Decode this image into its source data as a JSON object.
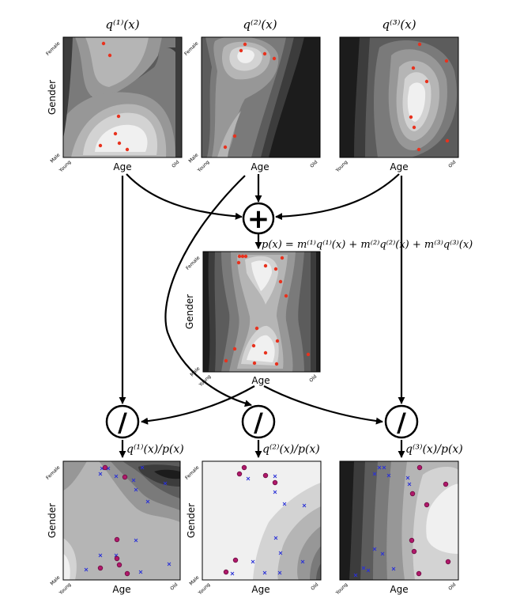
{
  "panels": {
    "q1": {
      "title": "q⁽¹⁾(x)",
      "x_label": "Age",
      "y_label": "Gender",
      "x_ticks": [
        "Young",
        "Old"
      ],
      "y_ticks": [
        "Male",
        "Female"
      ]
    },
    "q2": {
      "title": "q⁽²⁾(x)",
      "x_label": "Age",
      "y_label": "Gender",
      "x_ticks": [
        "Young",
        "Old"
      ],
      "y_ticks": [
        "Male",
        "Female"
      ]
    },
    "q3": {
      "title": "q⁽³⁾(x)",
      "x_label": "Age",
      "y_label": "Gender",
      "x_ticks": [
        "Young",
        "Old"
      ],
      "y_ticks": [
        "Male",
        "Female"
      ]
    },
    "p": {
      "x_label": "Age",
      "y_label": "Gender",
      "x_ticks": [
        "Young",
        "Old"
      ],
      "y_ticks": [
        "Male",
        "Female"
      ]
    },
    "r1": {
      "x_label": "Age",
      "y_label": "Gender",
      "x_ticks": [
        "Young",
        "Old"
      ],
      "y_ticks": [
        "Male",
        "Female"
      ]
    },
    "r2": {
      "x_label": "Age",
      "y_label": "Gender",
      "x_ticks": [
        "Young",
        "Old"
      ],
      "y_ticks": [
        "Male",
        "Female"
      ]
    },
    "r3": {
      "x_label": "Age",
      "y_label": "Gender",
      "x_ticks": [
        "Young",
        "Old"
      ],
      "y_ticks": [
        "Male",
        "Female"
      ]
    }
  },
  "operators": {
    "sum": "+",
    "divide": "/"
  },
  "equations": {
    "mixture": "p(x) = m⁽¹⁾q⁽¹⁾(x) + m⁽²⁾q⁽²⁾(x) + m⁽³⁾q⁽³⁾(x)",
    "ratio1": "q⁽¹⁾(x)/p(x)",
    "ratio2": "q⁽²⁾(x)/p(x)",
    "ratio3": "q⁽³⁾(x)/p(x)"
  },
  "colors": {
    "sample_points": "#e8321e",
    "cross_markers": "#2a32d6",
    "weighted_points": "#b0186a",
    "arrow": "#000000",
    "shades": [
      "#f0f0f0",
      "#d3d3d3",
      "#b5b5b5",
      "#979797",
      "#7a7a7a",
      "#5c5c5c",
      "#3c3c3c",
      "#1c1c1c"
    ]
  }
}
